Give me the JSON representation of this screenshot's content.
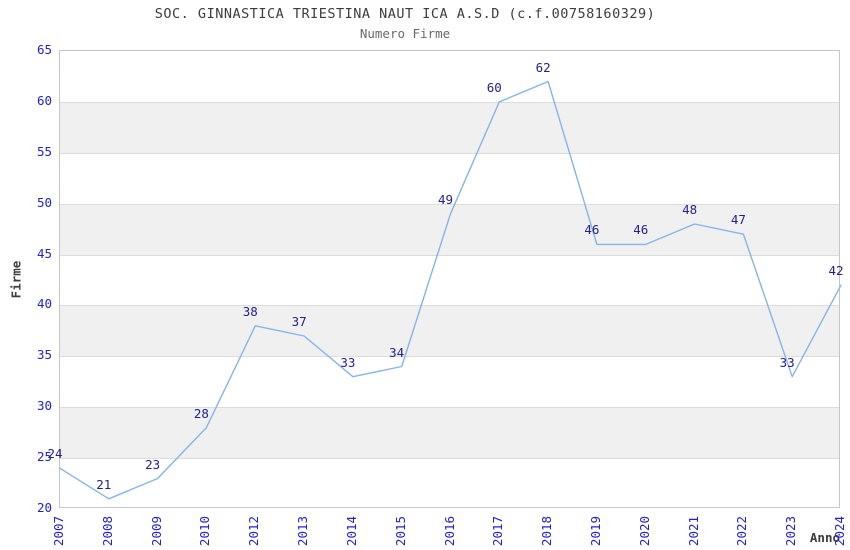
{
  "chart_data": {
    "type": "line",
    "title": "SOC. GINNASTICA TRIESTINA NAUT ICA A.S.D (c.f.00758160329)",
    "subtitle": "Numero Firme",
    "xlabel": "Anno",
    "ylabel": "Firme",
    "categories": [
      "2007",
      "2008",
      "2009",
      "2010",
      "2012",
      "2013",
      "2014",
      "2015",
      "2016",
      "2017",
      "2018",
      "2019",
      "2020",
      "2021",
      "2022",
      "2023",
      "2024"
    ],
    "values": [
      24,
      21,
      23,
      28,
      38,
      37,
      33,
      34,
      49,
      60,
      62,
      46,
      46,
      48,
      47,
      33,
      42
    ],
    "ylim": [
      20,
      65
    ],
    "ytick_step": 5,
    "yticks": [
      20,
      25,
      30,
      35,
      40,
      45,
      50,
      55,
      60,
      65
    ],
    "grid": "horizontal-stripes",
    "legend_position": "none",
    "markers": "none",
    "data_labels_visible": true,
    "colors": {
      "line": "#85b5e8",
      "data_label": "#1f1f8f",
      "tick_label": "#2222cc",
      "stripe": "#f0f0f0",
      "grid": "#dcdcdc",
      "border": "#c6c6c6",
      "title": "#3c3c3c",
      "subtitle": "#686868",
      "axis_label": "#3c3c3c",
      "background": "#ffffff"
    }
  }
}
